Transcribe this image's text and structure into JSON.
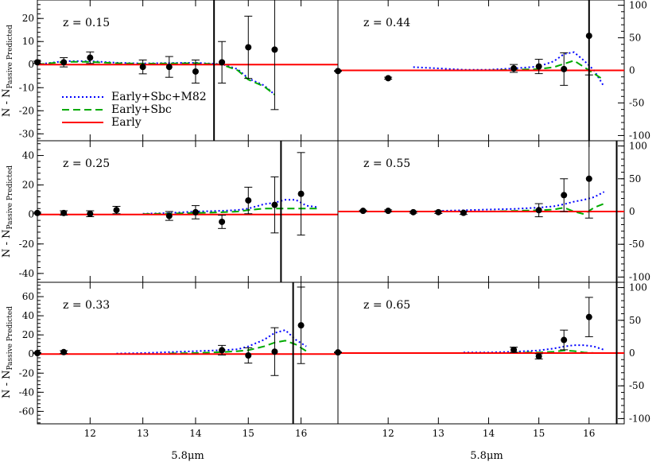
{
  "figure": {
    "ylabel_main": "N - N",
    "ylabel_sub": "Passive Predicted",
    "xlabel": "5.8μm",
    "colors": {
      "early": "#ff0000",
      "early_sbc": "#00aa00",
      "early_sbc_m82": "#0000ff",
      "data": "#000000"
    },
    "legend": [
      {
        "label": "Early+Sbc+M82",
        "style": "dotted",
        "color": "#0000ff"
      },
      {
        "label": "Early+Sbc",
        "style": "dashed",
        "color": "#00aa00"
      },
      {
        "label": "Early",
        "style": "solid",
        "color": "#ff0000"
      }
    ]
  },
  "chart_data": [
    {
      "type": "scatter",
      "label": "z = 0.15",
      "xlim": [
        11,
        16.7
      ],
      "ylim": [
        -33,
        28
      ],
      "y_ticks": [
        -30,
        -20,
        -10,
        0,
        10,
        20
      ],
      "y_axis_side": "left",
      "x_ticks": [],
      "cutoff_x": 14.35,
      "legend": true,
      "points": [
        [
          11.0,
          1.0,
          0.5
        ],
        [
          11.5,
          1.0,
          2.0
        ],
        [
          12.0,
          3.0,
          2.5
        ],
        [
          13.0,
          -1.0,
          3.0
        ],
        [
          13.5,
          -1.0,
          4.5
        ],
        [
          14.0,
          -3.0,
          5.0
        ],
        [
          14.5,
          1.0,
          9.0
        ],
        [
          15.0,
          7.5,
          13.5
        ],
        [
          15.5,
          6.5,
          26.0
        ]
      ],
      "series": [
        {
          "name": "Early+Sbc+M82",
          "x": [
            11.0,
            11.5,
            12.0,
            12.5,
            13.0,
            13.5,
            14.0,
            14.5,
            14.8,
            15.0,
            15.3,
            15.5
          ],
          "y": [
            0,
            1.5,
            1.5,
            0.8,
            0.5,
            0.7,
            0.8,
            0.2,
            -2,
            -6,
            -9,
            -13
          ]
        },
        {
          "name": "Early+Sbc",
          "x": [
            11.0,
            11.5,
            12.0,
            12.5,
            13.0,
            13.5,
            14.0,
            14.5,
            14.8,
            15.0,
            15.3,
            15.5
          ],
          "y": [
            0,
            1.2,
            1.2,
            0.6,
            0.4,
            0.5,
            0.6,
            0.0,
            -2.5,
            -6.5,
            -9.5,
            -13
          ]
        },
        {
          "name": "Early",
          "x": [
            11.0,
            16.7
          ],
          "y": [
            0,
            0
          ]
        }
      ]
    },
    {
      "type": "scatter",
      "label": "z = 0.44",
      "xlim": [
        11,
        16.7
      ],
      "ylim": [
        -108,
        108
      ],
      "y_ticks": [
        -100,
        -50,
        0,
        50,
        100
      ],
      "y_axis_side": "right",
      "x_ticks": [],
      "cutoff_x": 16.0,
      "legend": false,
      "points": [
        [
          11.0,
          -1.0,
          0.5
        ],
        [
          12.0,
          -12.0,
          1.5
        ],
        [
          14.5,
          3.0,
          6.0
        ],
        [
          15.0,
          6.0,
          11.0
        ],
        [
          15.5,
          2.0,
          25.0
        ],
        [
          16.0,
          53.0,
          60.0
        ]
      ],
      "series": [
        {
          "name": "Early+Sbc+M82",
          "x": [
            12.5,
            13.0,
            13.5,
            14.0,
            14.5,
            15.0,
            15.3,
            15.5,
            15.7,
            15.9,
            16.1,
            16.3
          ],
          "y": [
            5,
            3,
            1,
            1,
            3,
            6,
            14,
            25,
            28,
            15,
            0,
            -25
          ]
        },
        {
          "name": "Early+Sbc",
          "x": [
            14.0,
            14.5,
            15.0,
            15.3,
            15.5,
            15.7,
            15.9,
            16.1,
            16.3
          ],
          "y": [
            0,
            1,
            2,
            5,
            10,
            15,
            5,
            -5,
            -15
          ]
        },
        {
          "name": "Early",
          "x": [
            11.0,
            16.7
          ],
          "y": [
            0,
            0
          ]
        }
      ]
    },
    {
      "type": "scatter",
      "label": "z = 0.25",
      "xlim": [
        11,
        16.7
      ],
      "ylim": [
        -46,
        50
      ],
      "y_ticks": [
        -40,
        -20,
        0,
        20,
        40
      ],
      "y_axis_side": "left",
      "x_ticks": [],
      "cutoff_x": 15.62,
      "legend": false,
      "points": [
        [
          11.0,
          1.0,
          0.5
        ],
        [
          11.5,
          1.0,
          1.5
        ],
        [
          12.0,
          0.5,
          2.0
        ],
        [
          12.5,
          3.0,
          2.5
        ],
        [
          13.5,
          -1.0,
          3.0
        ],
        [
          14.0,
          1.5,
          4.5
        ],
        [
          14.5,
          -5.0,
          4.5
        ],
        [
          15.0,
          9.5,
          9.0
        ],
        [
          15.5,
          6.5,
          19.0
        ],
        [
          16.0,
          14.0,
          28.0
        ]
      ],
      "series": [
        {
          "name": "Early+Sbc+M82",
          "x": [
            13.0,
            13.5,
            14.0,
            14.5,
            14.8,
            15.0,
            15.3,
            15.5,
            15.7,
            15.9,
            16.1,
            16.3
          ],
          "y": [
            0.5,
            1,
            2,
            2.5,
            3,
            4,
            7,
            8,
            10,
            10,
            6,
            5
          ]
        },
        {
          "name": "Early+Sbc",
          "x": [
            13.0,
            13.5,
            14.0,
            14.5,
            14.8,
            15.0,
            15.3,
            15.5,
            15.7,
            15.9,
            16.1,
            16.3
          ],
          "y": [
            0.3,
            0.6,
            1,
            1.5,
            2,
            3,
            4,
            4,
            4,
            4,
            4,
            4
          ]
        },
        {
          "name": "Early",
          "x": [
            11.0,
            16.7
          ],
          "y": [
            0,
            0
          ]
        }
      ]
    },
    {
      "type": "scatter",
      "label": "z = 0.55",
      "xlim": [
        11,
        16.7
      ],
      "ylim": [
        -108,
        108
      ],
      "y_ticks": [
        -100,
        -50,
        0,
        50,
        100
      ],
      "y_axis_side": "right",
      "x_ticks": [],
      "cutoff_x": 16.55,
      "legend": false,
      "points": [
        [
          11.5,
          1.0,
          1.0
        ],
        [
          12.0,
          1.0,
          1.5
        ],
        [
          12.5,
          -1.0,
          1.5
        ],
        [
          13.0,
          -1.0,
          2.0
        ],
        [
          13.5,
          -2.0,
          2.5
        ],
        [
          15.0,
          2.0,
          10.0
        ],
        [
          15.5,
          25.0,
          25.0
        ],
        [
          16.0,
          50.0,
          60.0
        ]
      ],
      "series": [
        {
          "name": "Early+Sbc+M82",
          "x": [
            13.0,
            13.5,
            14.0,
            14.5,
            15.0,
            15.3,
            15.5,
            15.7,
            15.9,
            16.1,
            16.3
          ],
          "y": [
            1,
            2,
            3,
            4,
            6,
            8,
            11,
            15,
            18,
            22,
            30
          ]
        },
        {
          "name": "Early+Sbc",
          "x": [
            14.0,
            14.5,
            15.0,
            15.3,
            15.5,
            15.7,
            15.9,
            16.1,
            16.3
          ],
          "y": [
            0,
            1,
            2,
            3,
            6,
            0,
            -4,
            6,
            12
          ]
        },
        {
          "name": "Early",
          "x": [
            11.0,
            16.7
          ],
          "y": [
            0,
            0
          ]
        }
      ]
    },
    {
      "type": "scatter",
      "label": "z = 0.33",
      "xlim": [
        11,
        16.7
      ],
      "ylim": [
        -73,
        75
      ],
      "y_ticks": [
        -60,
        -40,
        -20,
        0,
        20,
        40,
        60
      ],
      "y_axis_side": "left",
      "x_ticks": [
        12,
        13,
        14,
        15,
        16
      ],
      "cutoff_x": 15.85,
      "legend": false,
      "points": [
        [
          11.0,
          1.0,
          0.5
        ],
        [
          11.5,
          2.0,
          1.5
        ],
        [
          14.5,
          4.0,
          5.0
        ],
        [
          15.0,
          -1.5,
          8.0
        ],
        [
          15.5,
          2.5,
          25.0
        ],
        [
          16.0,
          30.0,
          40.0
        ]
      ],
      "series": [
        {
          "name": "Early+Sbc+M82",
          "x": [
            12.5,
            13.0,
            13.5,
            14.0,
            14.5,
            14.8,
            15.0,
            15.3,
            15.5,
            15.7,
            15.9,
            16.1
          ],
          "y": [
            0.5,
            1,
            2,
            3,
            4,
            5,
            8,
            15,
            22,
            25,
            15,
            8
          ]
        },
        {
          "name": "Early+Sbc",
          "x": [
            13.5,
            14.0,
            14.5,
            14.8,
            15.0,
            15.3,
            15.5,
            15.7,
            15.9,
            16.1
          ],
          "y": [
            0.5,
            1,
            2,
            3,
            4,
            8,
            12,
            14,
            10,
            3
          ]
        },
        {
          "name": "Early",
          "x": [
            11.0,
            16.7
          ],
          "y": [
            0,
            0
          ]
        }
      ]
    },
    {
      "type": "scatter",
      "label": "z = 0.65",
      "xlim": [
        11,
        16.7
      ],
      "ylim": [
        -108,
        108
      ],
      "y_ticks": [
        -100,
        -50,
        0,
        50,
        100
      ],
      "y_axis_side": "right",
      "x_ticks": [
        12,
        13,
        14,
        15,
        16
      ],
      "cutoff_x": 16.55,
      "legend": false,
      "points": [
        [
          11.0,
          1.0,
          0.5
        ],
        [
          14.5,
          5.0,
          4.0
        ],
        [
          15.0,
          -5.0,
          4.0
        ],
        [
          15.5,
          20.0,
          15.0
        ],
        [
          16.0,
          55.0,
          30.0
        ]
      ],
      "series": [
        {
          "name": "Early+Sbc+M82",
          "x": [
            13.5,
            14.0,
            14.5,
            15.0,
            15.3,
            15.5,
            15.7,
            15.9,
            16.1,
            16.3
          ],
          "y": [
            1,
            1,
            2,
            4,
            7,
            10,
            12,
            12,
            10,
            5
          ]
        },
        {
          "name": "Early+Sbc",
          "x": [
            14.5,
            15.0,
            15.3,
            15.5,
            15.7,
            15.9,
            16.1,
            16.3
          ],
          "y": [
            0.5,
            1,
            2,
            4,
            3,
            1,
            0,
            0
          ]
        },
        {
          "name": "Early",
          "x": [
            11.0,
            16.7
          ],
          "y": [
            0,
            0
          ]
        }
      ]
    }
  ]
}
